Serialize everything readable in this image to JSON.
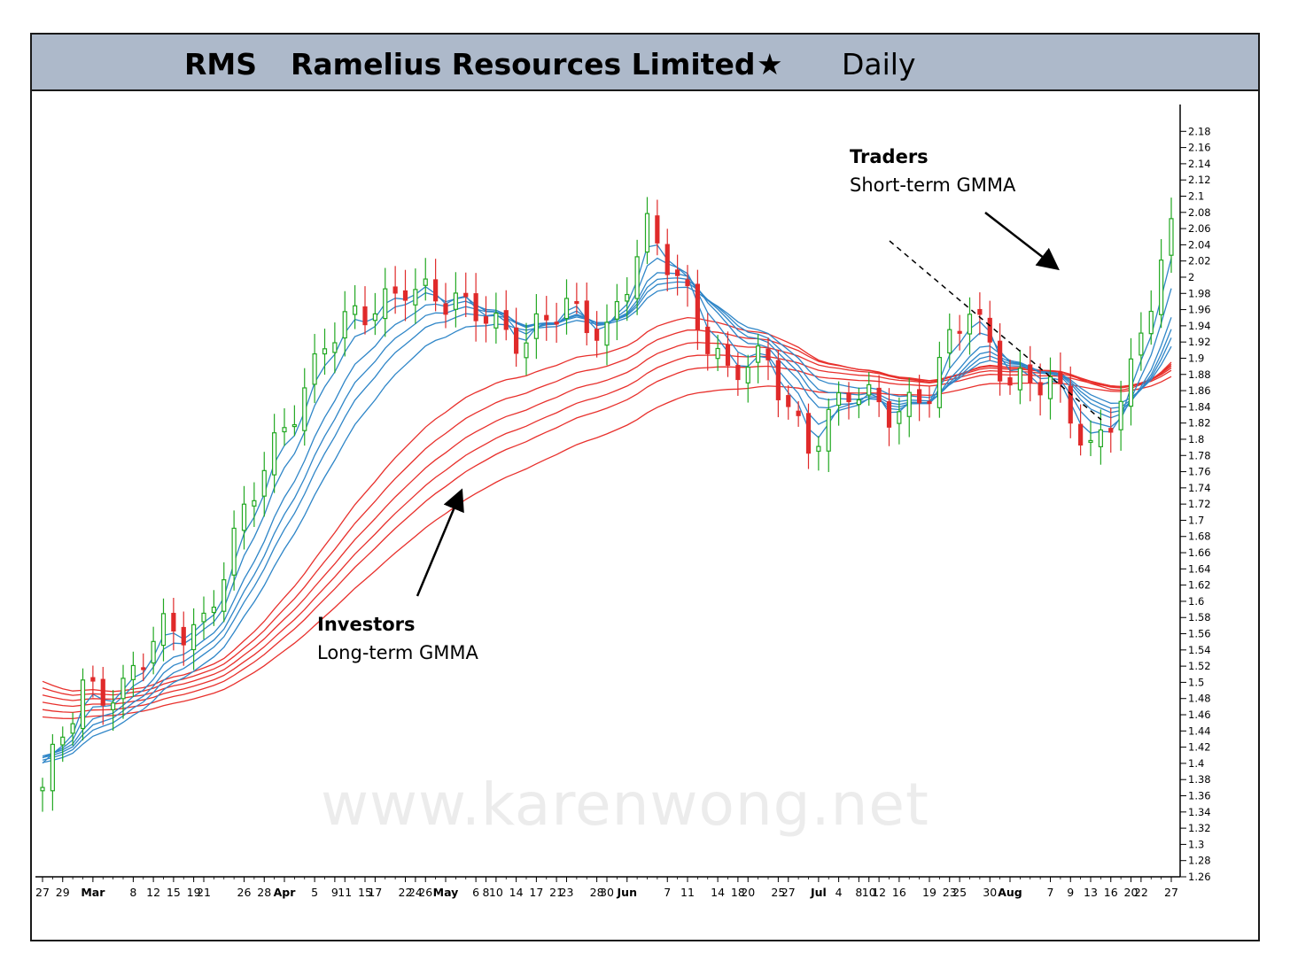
{
  "header": {
    "ticker": "RMS",
    "company": "Ramelius Resources Limited",
    "star": "★",
    "timeframe": "Daily"
  },
  "annotations": {
    "traders_title": "Traders",
    "traders_sub": "Short-term GMMA",
    "investors_title": "Investors",
    "investors_sub": "Long-term GMMA"
  },
  "watermark": "www.karenwong.net",
  "colors": {
    "short_term": "#2f86c8",
    "long_term": "#e8302c",
    "up_candle": "#22a822",
    "down_candle": "#e02a2a"
  },
  "chart_data": {
    "type": "line",
    "ylim": [
      1.26,
      2.2
    ],
    "yticks": [
      2.18,
      2.16,
      2.14,
      2.12,
      2.1,
      2.08,
      2.06,
      2.04,
      2.02,
      2.0,
      1.98,
      1.96,
      1.94,
      1.92,
      1.9,
      1.88,
      1.86,
      1.84,
      1.82,
      1.8,
      1.78,
      1.76,
      1.74,
      1.72,
      1.7,
      1.68,
      1.66,
      1.64,
      1.62,
      1.6,
      1.58,
      1.56,
      1.54,
      1.52,
      1.5,
      1.48,
      1.46,
      1.44,
      1.42,
      1.4,
      1.38,
      1.36,
      1.34,
      1.32,
      1.3,
      1.28,
      1.26
    ],
    "ytick_labels": [
      "2.18",
      "2.16",
      "2.14",
      "2.12",
      "2.1",
      "2.08",
      "2.06",
      "2.04",
      "2.02",
      "2",
      "1.98",
      "1.96",
      "1.94",
      "1.92",
      "1.9",
      "1.88",
      "1.86",
      "1.84",
      "1.82",
      "1.8",
      "1.78",
      "1.76",
      "1.74",
      "1.72",
      "1.7",
      "1.68",
      "1.66",
      "1.64",
      "1.62",
      "1.6",
      "1.58",
      "1.56",
      "1.54",
      "1.52",
      "1.5",
      "1.48",
      "1.46",
      "1.44",
      "1.42",
      "1.4",
      "1.38",
      "1.36",
      "1.34",
      "1.32",
      "1.3",
      "1.28",
      "1.26"
    ],
    "xtick_labels": [
      "27",
      "29",
      "Mar",
      "8",
      "12",
      "15",
      "19",
      "21",
      "26",
      "28",
      "Apr",
      "5",
      "9",
      "11",
      "15",
      "17",
      "22",
      "24",
      "26",
      "May",
      "6",
      "8",
      "10",
      "14",
      "17",
      "21",
      "23",
      "28",
      "30",
      "Jun",
      "7",
      "11",
      "14",
      "18",
      "20",
      "25",
      "27",
      "Jul",
      "4",
      "8",
      "10",
      "12",
      "16",
      "19",
      "23",
      "25",
      "30",
      "Aug",
      "7",
      "9",
      "13",
      "16",
      "20",
      "22",
      "27"
    ],
    "xtick_bars": [
      0,
      2,
      5,
      9,
      11,
      13,
      15,
      16,
      20,
      22,
      24,
      27,
      29,
      30,
      32,
      33,
      36,
      37,
      38,
      40,
      43,
      44,
      45,
      47,
      49,
      51,
      52,
      55,
      56,
      58,
      62,
      64,
      67,
      69,
      70,
      73,
      74,
      77,
      79,
      81,
      82,
      83,
      85,
      88,
      90,
      91,
      94,
      96,
      100,
      102,
      104,
      106,
      108,
      109,
      112
    ],
    "n_bars": 113,
    "x": [
      0,
      4,
      8,
      12,
      16,
      20,
      24,
      28,
      32,
      36,
      40,
      44,
      48,
      52,
      56,
      60,
      64,
      68,
      72,
      76,
      80,
      84,
      88,
      92,
      96,
      100,
      104,
      108,
      112
    ],
    "close": [
      1.36,
      1.5,
      1.49,
      1.56,
      1.58,
      1.7,
      1.82,
      1.92,
      1.95,
      2.0,
      1.96,
      1.96,
      1.92,
      1.96,
      1.94,
      2.05,
      1.98,
      1.88,
      1.89,
      1.8,
      1.85,
      1.84,
      1.86,
      1.96,
      1.88,
      1.86,
      1.79,
      1.88,
      2.05
    ],
    "series": [
      {
        "name": "Short-term GMMA",
        "periods": [
          3,
          5,
          8,
          10,
          12,
          15
        ]
      },
      {
        "name": "Long-term GMMA",
        "periods": [
          30,
          35,
          40,
          45,
          50,
          60
        ]
      }
    ],
    "legend": "none",
    "grid": false
  }
}
